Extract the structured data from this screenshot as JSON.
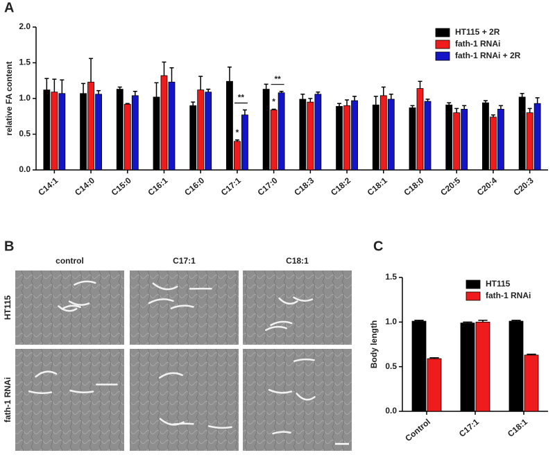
{
  "chart_data": [
    {
      "type": "bar",
      "panel_label": "A",
      "ylabel": "relative FA content",
      "categories": [
        "C14:1",
        "C14:0",
        "C15:0",
        "C16:1",
        "C16:0",
        "C17:1",
        "C17:0",
        "C18:3",
        "C18:2",
        "C18:1",
        "C18:0",
        "C20:5",
        "C20:4",
        "C20:3"
      ],
      "series": [
        {
          "name": "HT115 + 2R",
          "color": "#000000",
          "values": [
            1.12,
            1.07,
            1.13,
            1.02,
            0.9,
            1.24,
            1.13,
            0.99,
            0.89,
            0.91,
            0.87,
            0.91,
            0.94,
            1.02
          ],
          "errors": [
            0.16,
            0.14,
            0.03,
            0.2,
            0.05,
            0.2,
            0.07,
            0.07,
            0.04,
            0.12,
            0.03,
            0.03,
            0.03,
            0.05
          ]
        },
        {
          "name": "fath-1 RNAi",
          "color": "#ee1c1c",
          "values": [
            1.09,
            1.23,
            0.92,
            1.32,
            1.12,
            0.4,
            0.84,
            0.95,
            0.9,
            1.04,
            1.14,
            0.8,
            0.74,
            0.8
          ],
          "errors": [
            0.18,
            0.33,
            0.01,
            0.19,
            0.19,
            0.02,
            0.01,
            0.05,
            0.08,
            0.12,
            0.1,
            0.06,
            0.03,
            0.06
          ]
        },
        {
          "name": "fath-1 RNAi + 2R",
          "color": "#1515c8",
          "values": [
            1.07,
            1.06,
            1.04,
            1.23,
            1.09,
            0.77,
            1.08,
            1.06,
            0.97,
            0.99,
            0.96,
            0.85,
            0.85,
            0.93
          ],
          "errors": [
            0.19,
            0.05,
            0.06,
            0.2,
            0.04,
            0.07,
            0.02,
            0.03,
            0.06,
            0.07,
            0.03,
            0.05,
            0.05,
            0.08
          ]
        }
      ],
      "annotations": [
        {
          "text": "*",
          "category": "C17:1",
          "series": [
            "fath-1 RNAi"
          ]
        },
        {
          "text": "**",
          "category": "C17:1",
          "series": [
            "fath-1 RNAi",
            "fath-1 RNAi + 2R"
          ]
        },
        {
          "text": "*",
          "category": "C17:0",
          "series": [
            "fath-1 RNAi"
          ]
        },
        {
          "text": "**",
          "category": "C17:0",
          "series": [
            "fath-1 RNAi",
            "fath-1 RNAi + 2R"
          ]
        }
      ],
      "ylim": [
        0,
        2.0
      ],
      "yticks": [
        {
          "value": 0,
          "label": "0.0"
        },
        0.5,
        {
          "value": 1,
          "label": "1.0"
        },
        1.5,
        {
          "value": 2,
          "label": "2.0"
        }
      ],
      "legend": "upper right"
    },
    {
      "type": "bar",
      "panel_label": "C",
      "ylabel": "Body length",
      "categories": [
        "Control",
        "C17:1",
        "C18:1"
      ],
      "series": [
        {
          "name": "HT115",
          "color": "#000000",
          "values": [
            1.01,
            0.99,
            1.01
          ],
          "errors": [
            0.01,
            0.01,
            0.01
          ]
        },
        {
          "name": "fath-1 RNAi",
          "color": "#ee1c1c",
          "values": [
            0.59,
            1.0,
            0.63
          ],
          "errors": [
            0.01,
            0.02,
            0.01
          ]
        }
      ],
      "ylim": [
        0,
        1.5
      ],
      "yticks": [
        {
          "value": 0,
          "label": "0.0"
        },
        0.5,
        {
          "value": 1,
          "label": "1.0"
        },
        1.5
      ],
      "legend": "upper right"
    }
  ],
  "image_panel": {
    "panel_label": "B",
    "columns": [
      "control",
      "C17:1",
      "C18:1"
    ],
    "rows": [
      "HT115",
      "fath-1 RNAi"
    ]
  }
}
